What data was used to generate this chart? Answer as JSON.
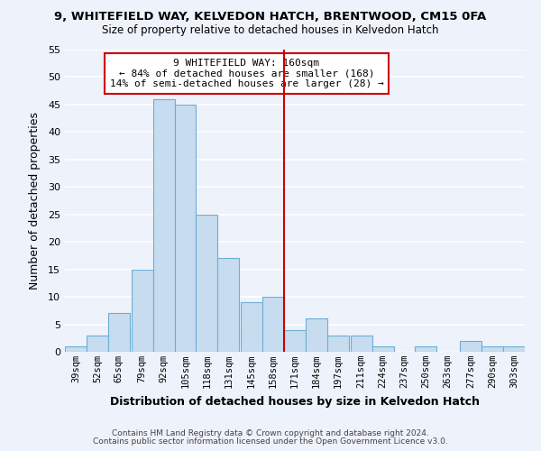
{
  "title_line1": "9, WHITEFIELD WAY, KELVEDON HATCH, BRENTWOOD, CM15 0FA",
  "title_line2": "Size of property relative to detached houses in Kelvedon Hatch",
  "xlabel": "Distribution of detached houses by size in Kelvedon Hatch",
  "ylabel": "Number of detached properties",
  "bin_labels": [
    "39sqm",
    "52sqm",
    "65sqm",
    "79sqm",
    "92sqm",
    "105sqm",
    "118sqm",
    "131sqm",
    "145sqm",
    "158sqm",
    "171sqm",
    "184sqm",
    "197sqm",
    "211sqm",
    "224sqm",
    "237sqm",
    "250sqm",
    "263sqm",
    "277sqm",
    "290sqm",
    "303sqm"
  ],
  "bin_edges": [
    39,
    52,
    65,
    79,
    92,
    105,
    118,
    131,
    145,
    158,
    171,
    184,
    197,
    211,
    224,
    237,
    250,
    263,
    277,
    290,
    303
  ],
  "counts": [
    1,
    3,
    7,
    15,
    46,
    45,
    25,
    17,
    9,
    10,
    4,
    6,
    3,
    3,
    1,
    0,
    1,
    0,
    2,
    1,
    1
  ],
  "bar_color": "#c8dcf0",
  "bar_edge_color": "#6aafd6",
  "ref_line_color": "#cc0000",
  "ylim": [
    0,
    55
  ],
  "yticks": [
    0,
    5,
    10,
    15,
    20,
    25,
    30,
    35,
    40,
    45,
    50,
    55
  ],
  "annotation_title": "9 WHITEFIELD WAY: 160sqm",
  "annotation_line1": "← 84% of detached houses are smaller (168)",
  "annotation_line2": "14% of semi-detached houses are larger (28) →",
  "annotation_box_color": "#ffffff",
  "annotation_box_edge": "#cc0000",
  "footer_line1": "Contains HM Land Registry data © Crown copyright and database right 2024.",
  "footer_line2": "Contains public sector information licensed under the Open Government Licence v3.0.",
  "background_color": "#eef2fb",
  "grid_color": "#ffffff"
}
